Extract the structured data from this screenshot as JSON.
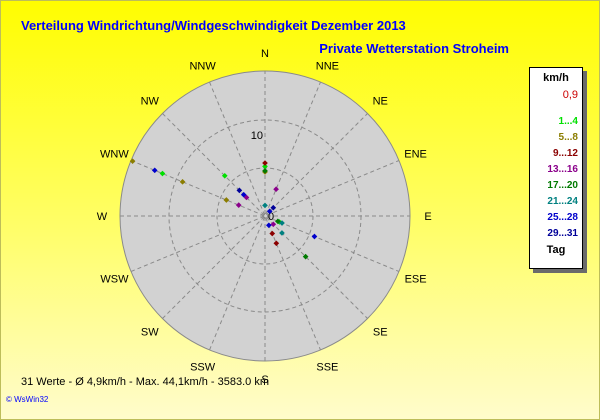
{
  "title": "Verteilung Windrichtung/Windgeschwindigkeit  Dezember 2013",
  "subtitle": "Private Wetterstation Stroheim",
  "footer_stats": "31 Werte   -   Ø 4,9km/h  -  Max. 44,1km/h  -   3583.0 km",
  "credit": "© WsWin32",
  "legend": {
    "header": "km/h",
    "items": [
      {
        "label": "0,9",
        "color": "#cc0000"
      },
      {
        "label": "1...4",
        "color": "#00e000"
      },
      {
        "label": "5...8",
        "color": "#8b7d00"
      },
      {
        "label": "9...12",
        "color": "#8b0000"
      },
      {
        "label": "13...16",
        "color": "#8b008b"
      },
      {
        "label": "17...20",
        "color": "#007a00"
      },
      {
        "label": "21...24",
        "color": "#008080"
      },
      {
        "label": "25...28",
        "color": "#0000cc"
      },
      {
        "label": "29...31",
        "color": "#000099"
      }
    ],
    "footer": "Tag"
  },
  "chart_data": {
    "type": "scatter",
    "title": "Verteilung Windrichtung/Windgeschwindigkeit  Dezember 2013",
    "subtitle": "Private Wetterstation Stroheim",
    "radial_max": 26,
    "radial_tick_labels": [
      "10",
      "0"
    ],
    "directions": [
      "N",
      "NNE",
      "NE",
      "ENE",
      "E",
      "ESE",
      "SE",
      "SSE",
      "S",
      "SSW",
      "SW",
      "WSW",
      "W",
      "WNW",
      "NW",
      "NNW"
    ],
    "grid": true,
    "legend_position": "right",
    "points": [
      {
        "day_group": "1...4",
        "dir_deg": 0,
        "r": 8.9
      },
      {
        "day_group": "1...4",
        "dir_deg": 292.5,
        "r": 19.9
      },
      {
        "day_group": "1...4",
        "dir_deg": 112.5,
        "r": 2.8
      },
      {
        "day_group": "1...4",
        "dir_deg": 315,
        "r": 10.2
      },
      {
        "day_group": "5...8",
        "dir_deg": 292.5,
        "r": 25.7
      },
      {
        "day_group": "5...8",
        "dir_deg": 292.5,
        "r": 16.0
      },
      {
        "day_group": "5...8",
        "dir_deg": 292.5,
        "r": 7.5
      },
      {
        "day_group": "5...8",
        "dir_deg": 0,
        "r": 7.9
      },
      {
        "day_group": "9...12",
        "dir_deg": 157.5,
        "r": 3.4
      },
      {
        "day_group": "9...12",
        "dir_deg": 157.5,
        "r": 5.3
      },
      {
        "day_group": "9...12",
        "dir_deg": 0,
        "r": 9.5
      },
      {
        "day_group": "13...16",
        "dir_deg": 315,
        "r": 4.7
      },
      {
        "day_group": "13...16",
        "dir_deg": 22.5,
        "r": 5.2
      },
      {
        "day_group": "13...16",
        "dir_deg": 292.5,
        "r": 5.1
      },
      {
        "day_group": "13...16",
        "dir_deg": 135,
        "r": 2.1
      },
      {
        "day_group": "17...20",
        "dir_deg": 135,
        "r": 10.3
      },
      {
        "day_group": "17...20",
        "dir_deg": 0,
        "r": 8.1
      },
      {
        "day_group": "17...20",
        "dir_deg": 112.5,
        "r": 2.5
      },
      {
        "day_group": "21...24",
        "dir_deg": 112.5,
        "r": 3.3
      },
      {
        "day_group": "21...24",
        "dir_deg": 135,
        "r": 4.3
      },
      {
        "day_group": "21...24",
        "dir_deg": 0,
        "r": 1.9
      },
      {
        "day_group": "25...28",
        "dir_deg": 292.5,
        "r": 21.4
      },
      {
        "day_group": "25...28",
        "dir_deg": 112.5,
        "r": 9.6
      },
      {
        "day_group": "25...28",
        "dir_deg": 315,
        "r": 5.4
      },
      {
        "day_group": "25...28",
        "dir_deg": 45,
        "r": 1.2
      },
      {
        "day_group": "25...28",
        "dir_deg": 157.5,
        "r": 1.8
      },
      {
        "day_group": "29...31",
        "dir_deg": 315,
        "r": 6.5
      },
      {
        "day_group": "29...31",
        "dir_deg": 45,
        "r": 2.1
      }
    ]
  }
}
